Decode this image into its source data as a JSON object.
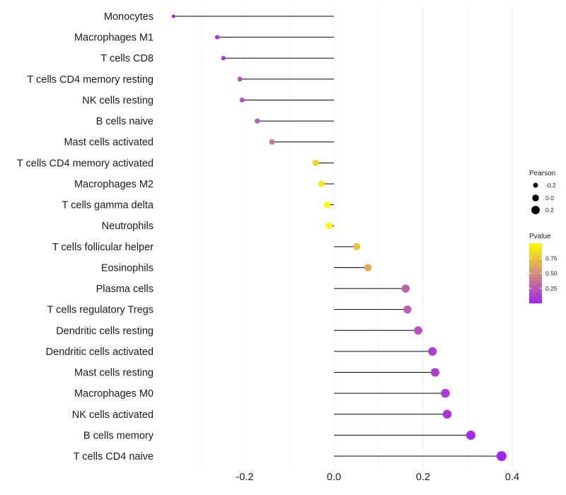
{
  "chart_data": {
    "type": "lollipop",
    "title": "",
    "xlabel": "",
    "ylabel": "",
    "xlim": [
      -0.4,
      0.4
    ],
    "x_ticks": [
      -0.2,
      0.0,
      0.2,
      0.4
    ],
    "x_tick_labels": [
      "-0.2",
      "0.0",
      "0.2",
      "0.4"
    ],
    "grid": true,
    "categories": [
      "Monocytes",
      "Macrophages M1",
      "T cells CD8",
      "T cells CD4 memory resting",
      "NK cells resting",
      "B cells naive",
      "Mast cells activated",
      "T cells CD4 memory activated",
      "Macrophages M2",
      "T cells gamma delta",
      "Neutrophils",
      "T cells follicular helper",
      "Eosinophils",
      "Plasma cells",
      "T cells regulatory  Tregs",
      "Dendritic cells resting",
      "Dendritic cells activated",
      "Mast cells resting",
      "Macrophages M0",
      "NK cells activated",
      "B cells memory",
      "T cells CD4 naive"
    ],
    "pearson": [
      -0.36,
      -0.262,
      -0.248,
      -0.211,
      -0.206,
      -0.172,
      -0.139,
      -0.041,
      -0.028,
      -0.015,
      -0.011,
      0.051,
      0.076,
      0.161,
      0.165,
      0.189,
      0.221,
      0.227,
      0.25,
      0.254,
      0.307,
      0.376
    ],
    "pvalue": [
      0.02,
      0.09,
      0.1,
      0.2,
      0.21,
      0.28,
      0.38,
      0.82,
      0.9,
      0.96,
      0.97,
      0.74,
      0.63,
      0.3,
      0.29,
      0.22,
      0.15,
      0.14,
      0.11,
      0.1,
      0.05,
      0.02
    ],
    "legend": {
      "size_title": "Pearson",
      "size_labels": [
        "-0.2",
        "0.0",
        "0.2"
      ],
      "size_values": [
        -0.2,
        0.0,
        0.2
      ],
      "color_title": "Pvalue",
      "color_labels": [
        "0.75",
        "0.50",
        "0.25"
      ],
      "color_values": [
        0.75,
        0.5,
        0.25
      ],
      "color_range": [
        0.0,
        1.0
      ],
      "placement": "right"
    },
    "colors": {
      "low": "#a020f0",
      "high": "#ffff00",
      "stem": "#000000",
      "grid": "#ebebeb"
    }
  }
}
